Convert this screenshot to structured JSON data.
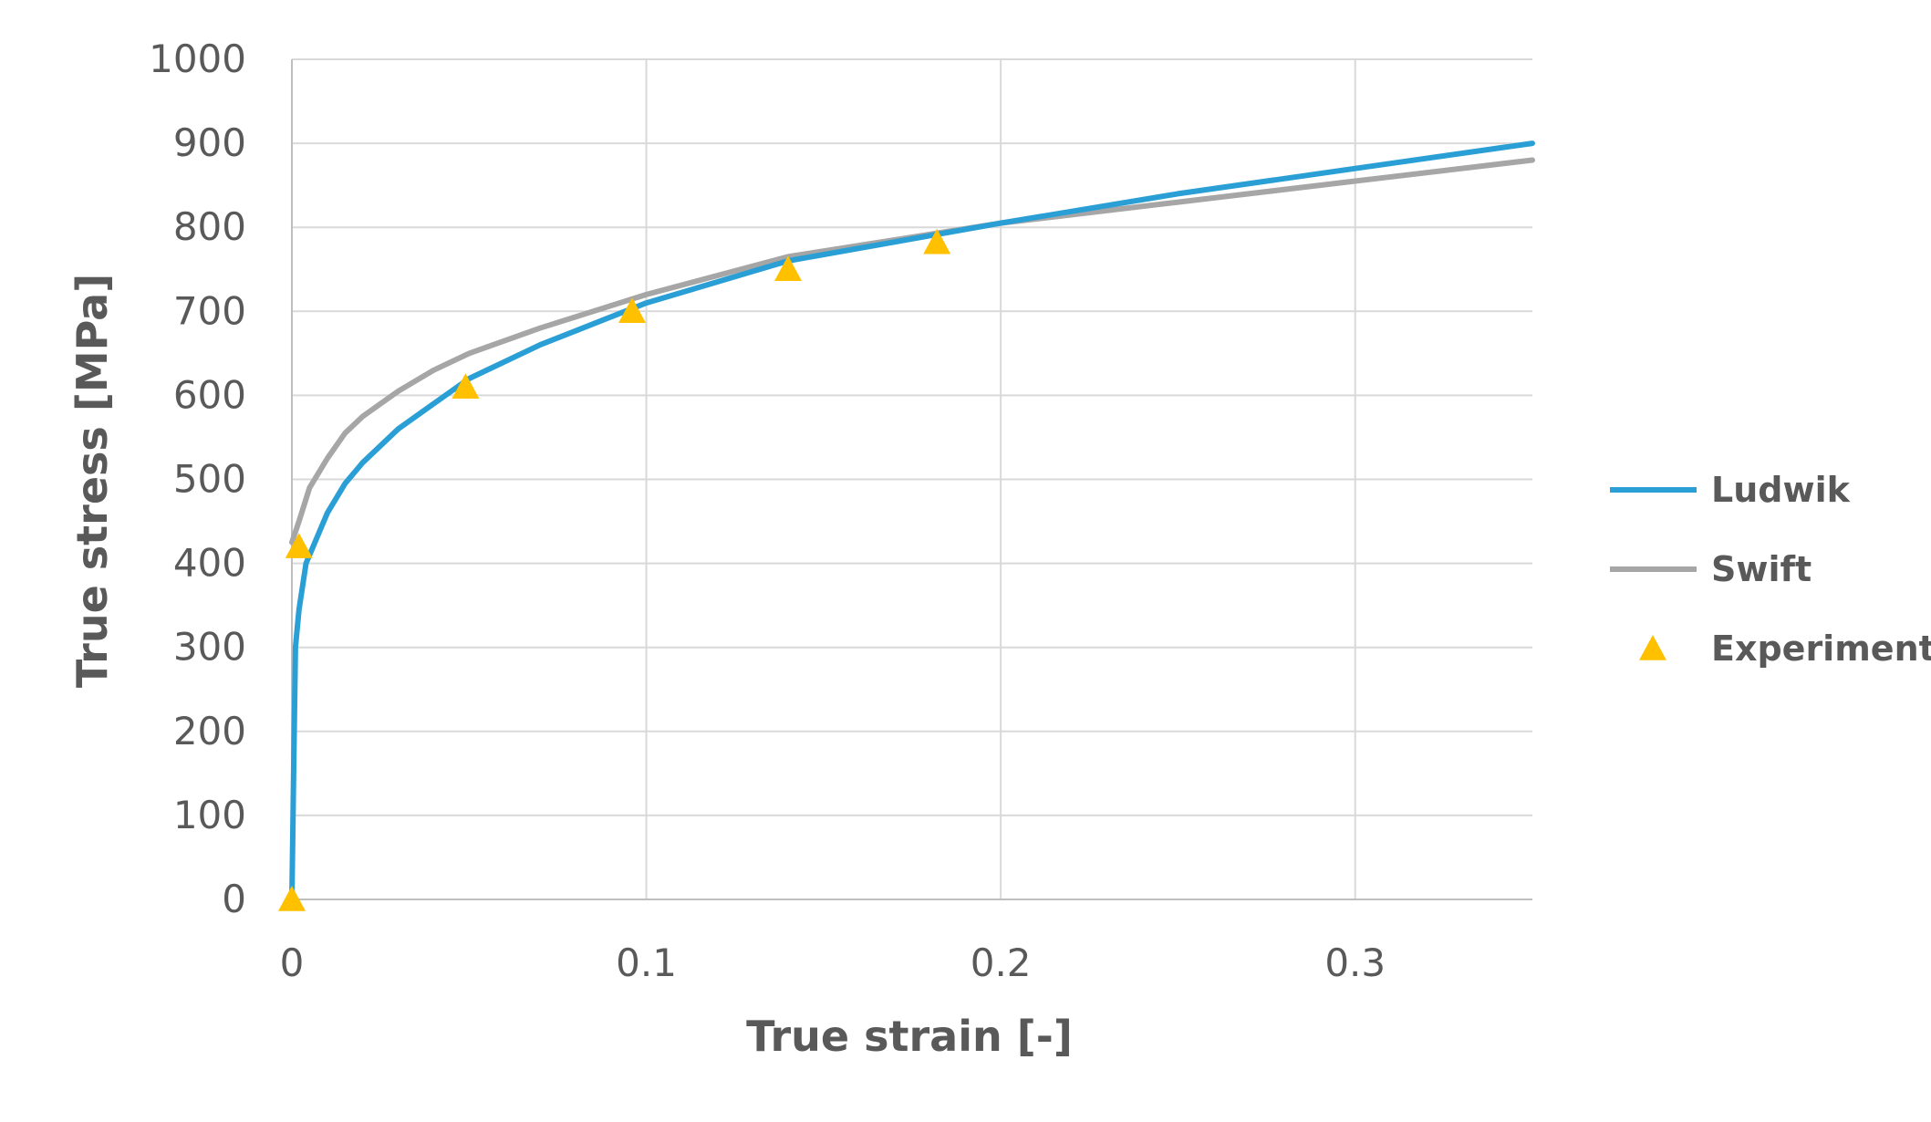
{
  "chart_data": {
    "type": "line",
    "title": "",
    "xlabel": "True strain [-]",
    "ylabel": "True stress [MPa]",
    "xlim": [
      0,
      0.35
    ],
    "ylim": [
      0,
      1000
    ],
    "x_ticks": [
      "0",
      "0.1",
      "0.2",
      "0.3"
    ],
    "x_tick_values": [
      0,
      0.1,
      0.2,
      0.3
    ],
    "y_ticks": [
      "0",
      "100",
      "200",
      "300",
      "400",
      "500",
      "600",
      "700",
      "800",
      "900",
      "1000"
    ],
    "y_tick_values": [
      0,
      100,
      200,
      300,
      400,
      500,
      600,
      700,
      800,
      900,
      1000
    ],
    "grid": true,
    "legend_position": "right",
    "series": [
      {
        "name": "Ludwik",
        "kind": "line",
        "color": "#2a9fd6",
        "x": [
          0,
          0.0005,
          0.001,
          0.002,
          0.004,
          0.006,
          0.01,
          0.015,
          0.02,
          0.03,
          0.04,
          0.05,
          0.07,
          0.1,
          0.14,
          0.2,
          0.25,
          0.3,
          0.35
        ],
        "y": [
          0,
          150,
          300,
          345,
          400,
          420,
          460,
          495,
          520,
          560,
          590,
          620,
          660,
          710,
          760,
          805,
          840,
          870,
          900
        ]
      },
      {
        "name": "Swift",
        "kind": "line",
        "color": "#a6a6a6",
        "x": [
          0,
          0.002,
          0.005,
          0.01,
          0.015,
          0.02,
          0.03,
          0.04,
          0.05,
          0.07,
          0.1,
          0.14,
          0.2,
          0.25,
          0.3,
          0.35
        ],
        "y": [
          425,
          450,
          490,
          525,
          555,
          575,
          605,
          630,
          650,
          680,
          720,
          765,
          805,
          830,
          855,
          880
        ]
      },
      {
        "name": "Experiment",
        "kind": "marker",
        "marker": "triangle",
        "color": "#ffc000",
        "x": [
          0,
          0.002,
          0.049,
          0.096,
          0.14,
          0.182
        ],
        "y": [
          0,
          420,
          610,
          700,
          750,
          782
        ]
      }
    ]
  }
}
